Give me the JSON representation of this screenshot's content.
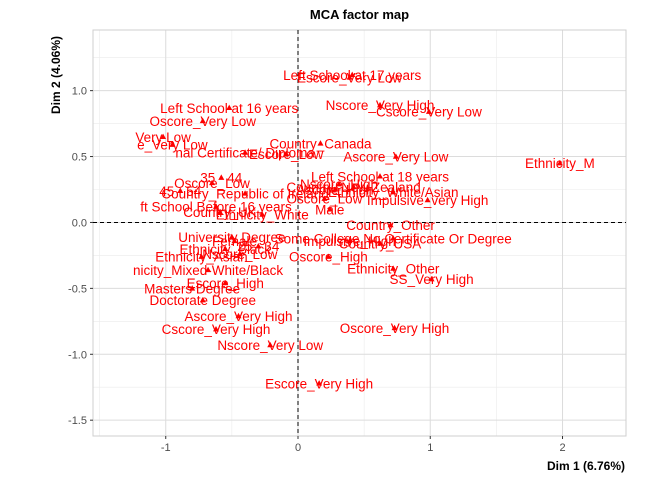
{
  "chart_data": {
    "type": "scatter",
    "title": "MCA factor map",
    "xlabel": "Dim 1 (6.76%)",
    "ylabel": "Dim 2 (4.06%)",
    "xlim": [
      -1.55,
      2.48
    ],
    "ylim": [
      -1.62,
      1.46
    ],
    "x_ticks": [
      -1,
      0,
      1,
      2
    ],
    "x_tick_labels": [
      "-1",
      "0",
      "1",
      "2"
    ],
    "y_ticks": [
      -1.5,
      -1.0,
      -0.5,
      0.0,
      0.5,
      1.0
    ],
    "y_tick_labels": [
      "-1.5",
      "-1.0",
      "-0.5",
      "0.0",
      "0.5",
      "1.0"
    ],
    "grid": true,
    "reference_lines": [
      0,
      0
    ],
    "point_color": "#ff0000",
    "label_color": "#ff0000",
    "points": [
      {
        "label": "Left School at 17 years",
        "x": 0.41,
        "y": 1.12
      },
      {
        "label": "Escore_Very Low",
        "x": 0.39,
        "y": 1.1
      },
      {
        "label": "Left School at 16 years",
        "x": -0.52,
        "y": 0.87
      },
      {
        "label": "Oscore_Very Low",
        "x": -0.72,
        "y": 0.77
      },
      {
        "label": "Very Low",
        "x": -1.02,
        "y": 0.65
      },
      {
        "label": "e_Very Low",
        "x": -0.95,
        "y": 0.59
      },
      {
        "label": "nal Certificate/ Diploma",
        "x": -0.4,
        "y": 0.53
      },
      {
        "label": "Escore_Low",
        "x": -0.09,
        "y": 0.52
      },
      {
        "label": "Nscore_Very High",
        "x": 0.62,
        "y": 0.89
      },
      {
        "label": "Cscore_Very Low",
        "x": 0.99,
        "y": 0.84
      },
      {
        "label": "Country_Canada",
        "x": 0.17,
        "y": 0.6
      },
      {
        "label": "Ascore_Very Low",
        "x": 0.74,
        "y": 0.5
      },
      {
        "label": "Ethnicity_M",
        "x": 1.98,
        "y": 0.45
      },
      {
        "label": "Left School at 18 years",
        "x": 0.62,
        "y": 0.35
      },
      {
        "label": "35 - 44",
        "x": -0.58,
        "y": 0.34
      },
      {
        "label": "Oscore_Low",
        "x": -0.65,
        "y": 0.3
      },
      {
        "label": "45 - 54",
        "x": -0.89,
        "y": 0.24
      },
      {
        "label": "Country_Republic of Ireland",
        "x": -0.4,
        "y": 0.22
      },
      {
        "label": "Nscore_High",
        "x": 0.31,
        "y": 0.29
      },
      {
        "label": "Ascore_High",
        "x": 0.28,
        "y": 0.25
      },
      {
        "label": "Country_New Zealand",
        "x": 0.42,
        "y": 0.27
      },
      {
        "label": "Ethnicity_White/Asian",
        "x": 0.72,
        "y": 0.23
      },
      {
        "label": "Impulsive_very High",
        "x": 0.98,
        "y": 0.17
      },
      {
        "label": "Oscore_Low",
        "x": 0.2,
        "y": 0.18
      },
      {
        "label": "Male",
        "x": 0.24,
        "y": 0.1
      },
      {
        "label": "ft School Before 16 years",
        "x": -0.62,
        "y": 0.12
      },
      {
        "label": "Country_UK",
        "x": -0.59,
        "y": 0.08
      },
      {
        "label": "Ethnicity_White",
        "x": -0.27,
        "y": 0.06
      },
      {
        "label": "Country_Other",
        "x": 0.7,
        "y": -0.02
      },
      {
        "label": "Some College,No Certificate Or Degree",
        "x": 0.72,
        "y": -0.12
      },
      {
        "label": "Country_USA",
        "x": 0.62,
        "y": -0.16
      },
      {
        "label": "Impulsive_High",
        "x": 0.39,
        "y": -0.14
      },
      {
        "label": "Oscore_High",
        "x": 0.23,
        "y": -0.26
      },
      {
        "label": "Ethnicity_Other",
        "x": 0.72,
        "y": -0.35
      },
      {
        "label": "SS_Very High",
        "x": 1.01,
        "y": -0.43
      },
      {
        "label": "University Degree",
        "x": -0.5,
        "y": -0.11
      },
      {
        "label": "Female",
        "x": -0.48,
        "y": -0.14
      },
      {
        "label": "25 - 34",
        "x": -0.3,
        "y": -0.18
      },
      {
        "label": "Ethnicity_Black",
        "x": -0.55,
        "y": -0.2
      },
      {
        "label": "Ethnicity_Asian",
        "x": -0.73,
        "y": -0.26
      },
      {
        "label": "Nscore_Low",
        "x": -0.44,
        "y": -0.24
      },
      {
        "label": "nicity_Mixed-White/Black",
        "x": -0.68,
        "y": -0.36
      },
      {
        "label": "Escore_High",
        "x": -0.55,
        "y": -0.46
      },
      {
        "label": "Masters Degree",
        "x": -0.8,
        "y": -0.5
      },
      {
        "label": "Doctorate Degree",
        "x": -0.72,
        "y": -0.59
      },
      {
        "label": "Ascore_Very High",
        "x": -0.45,
        "y": -0.71
      },
      {
        "label": "Cscore_Very High",
        "x": -0.62,
        "y": -0.81
      },
      {
        "label": "Nscore_Very Low",
        "x": -0.21,
        "y": -0.93
      },
      {
        "label": "Oscore_Very High",
        "x": 0.73,
        "y": -0.8
      },
      {
        "label": "Escore_Very High",
        "x": 0.16,
        "y": -1.22
      }
    ]
  }
}
